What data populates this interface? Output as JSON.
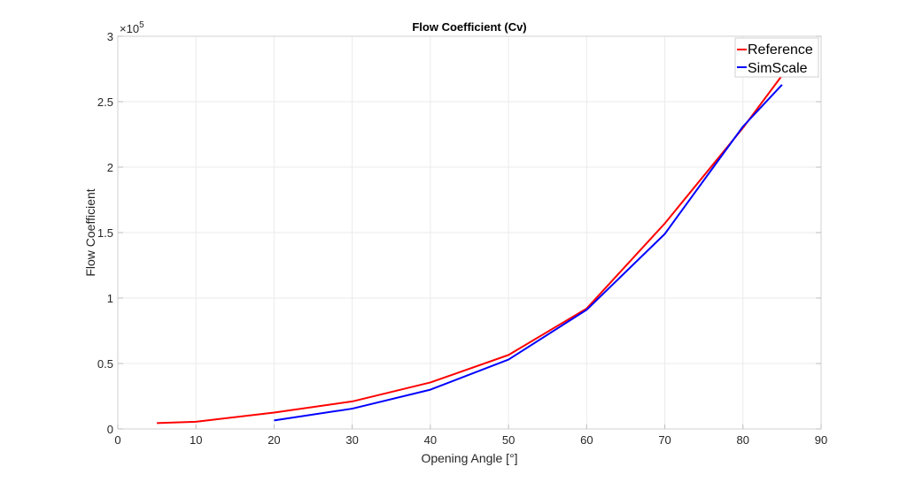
{
  "chart_data": {
    "type": "line",
    "title": "Flow Coefficient (Cv)",
    "xlabel": "Opening Angle [°]",
    "ylabel": "Flow Coefficient",
    "y_exponent_label": "×10",
    "y_exponent": "5",
    "xlim": [
      0,
      90
    ],
    "ylim": [
      0,
      3
    ],
    "xticks": [
      0,
      10,
      20,
      30,
      40,
      50,
      60,
      70,
      80,
      90
    ],
    "yticks": [
      0,
      0.5,
      1,
      1.5,
      2,
      2.5,
      3
    ],
    "ytick_labels": [
      "0",
      "0.5",
      "1",
      "1.5",
      "2",
      "2.5",
      "3"
    ],
    "grid": true,
    "legend_position": "top-right",
    "series": [
      {
        "name": "Reference",
        "color": "#ff0000",
        "x": [
          5,
          10,
          20,
          30,
          40,
          50,
          60,
          70,
          80,
          85
        ],
        "values": [
          0.045,
          0.055,
          0.125,
          0.21,
          0.355,
          0.565,
          0.92,
          1.57,
          2.3,
          2.7
        ]
      },
      {
        "name": "SimScale",
        "color": "#0000ff",
        "x": [
          20,
          30,
          40,
          50,
          60,
          70,
          80,
          85
        ],
        "values": [
          0.065,
          0.155,
          0.3,
          0.53,
          0.91,
          1.49,
          2.31,
          2.63
        ]
      }
    ]
  }
}
